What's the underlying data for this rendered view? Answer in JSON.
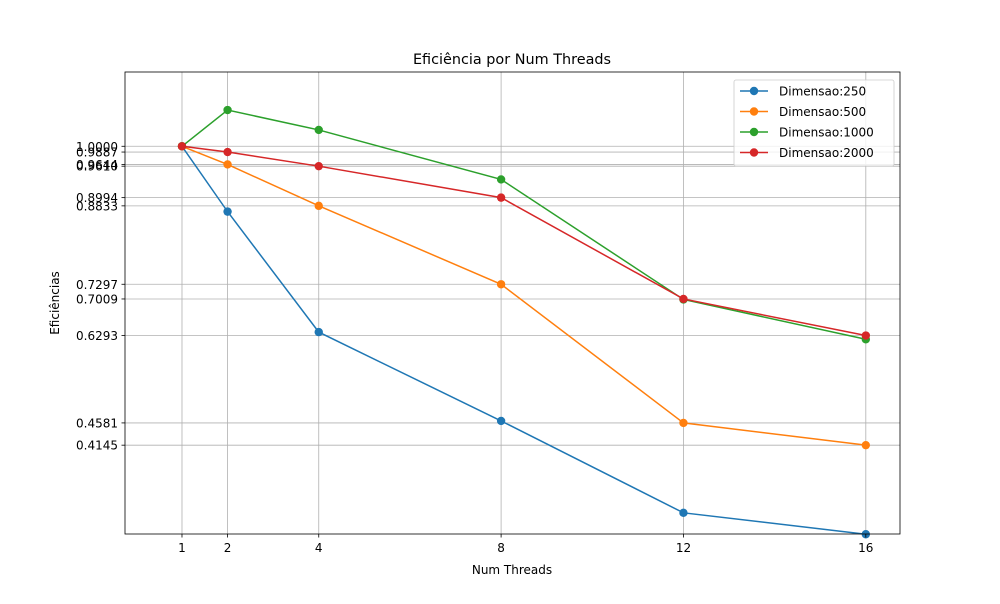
{
  "chart_data": {
    "type": "line",
    "title": "Eficiência por Num Threads",
    "xlabel": "Num Threads",
    "ylabel": "Eficiências",
    "x": [
      1,
      2,
      4,
      8,
      12,
      16
    ],
    "x_ticks": [
      1,
      2,
      4,
      8,
      12,
      16
    ],
    "y_ticks": [
      1.0,
      0.9887,
      0.9644,
      0.961,
      0.8994,
      0.8833,
      0.7297,
      0.7009,
      0.6293,
      0.4581,
      0.4145
    ],
    "y_tick_labels": [
      "1.0000",
      "0.9887",
      "0.9644",
      "0.9610",
      "0.8994",
      "0.8833",
      "0.7297",
      "0.7009",
      "0.6293",
      "0.4581",
      "0.4145"
    ],
    "xlim": [
      -0.25,
      16.75
    ],
    "ylim": [
      0.2405,
      1.1455
    ],
    "grid": true,
    "legend_position": "top-right",
    "series": [
      {
        "name": "Dimensao:250",
        "color": "#1f77b4",
        "values": [
          1.0,
          0.872,
          0.636,
          0.462,
          0.282,
          0.24
        ]
      },
      {
        "name": "Dimensao:500",
        "color": "#ff7f0e",
        "values": [
          1.0,
          0.9644,
          0.8833,
          0.7297,
          0.4581,
          0.4145
        ]
      },
      {
        "name": "Dimensao:1000",
        "color": "#2ca02c",
        "values": [
          1.0,
          1.071,
          1.032,
          0.935,
          0.6999,
          0.622
        ]
      },
      {
        "name": "Dimensao:2000",
        "color": "#d62728",
        "values": [
          1.0,
          0.9887,
          0.961,
          0.8994,
          0.7009,
          0.6293
        ]
      }
    ]
  }
}
